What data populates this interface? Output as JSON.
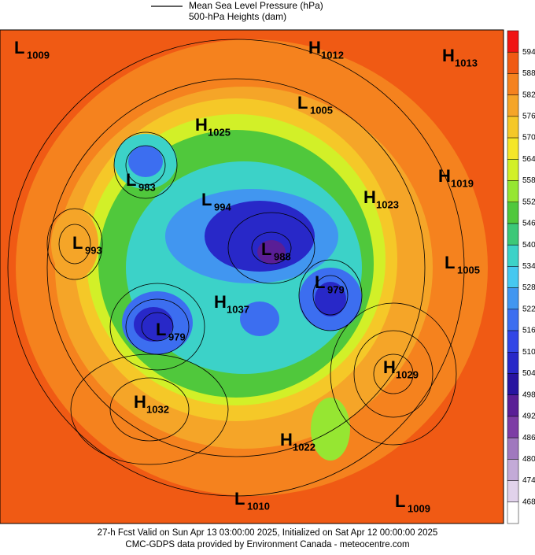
{
  "legend": [
    "Mean Sea Level Pressure (hPa)",
    "500-hPa Heights (dam)"
  ],
  "colorbar": {
    "ticks": [
      594,
      588,
      582,
      576,
      570,
      564,
      558,
      552,
      546,
      540,
      534,
      528,
      522,
      516,
      510,
      504,
      498,
      492,
      486,
      480,
      474,
      468
    ],
    "colors": [
      "#f01414",
      "#f05a14",
      "#f5821e",
      "#f5a528",
      "#f5c828",
      "#f5e628",
      "#d2f028",
      "#96e632",
      "#50c83c",
      "#3cc878",
      "#3cd2c8",
      "#46c8f0",
      "#4196f0",
      "#3c6ef0",
      "#3246e6",
      "#2828c8",
      "#2814a0",
      "#5a1e96",
      "#7d3ca5",
      "#a078be",
      "#c3aad7",
      "#e1d2eb",
      "#ffffff"
    ]
  },
  "centers": [
    {
      "type": "L",
      "value": 1009
    },
    {
      "type": "H",
      "value": 1012
    },
    {
      "type": "H",
      "value": 1013
    },
    {
      "type": "L",
      "value": 1005
    },
    {
      "type": "H",
      "value": 1025
    },
    {
      "type": "L",
      "value": 983
    },
    {
      "type": "H",
      "value": 1019
    },
    {
      "type": "L",
      "value": 994
    },
    {
      "type": "H",
      "value": 1023
    },
    {
      "type": "L",
      "value": 993
    },
    {
      "type": "L",
      "value": 988
    },
    {
      "type": "L",
      "value": 1005
    },
    {
      "type": "L",
      "value": 979
    },
    {
      "type": "H",
      "value": 1037
    },
    {
      "type": "L",
      "value": 979
    },
    {
      "type": "H",
      "value": 1029
    },
    {
      "type": "H",
      "value": 1032
    },
    {
      "type": "H",
      "value": 1022
    },
    {
      "type": "L",
      "value": 1010
    },
    {
      "type": "L",
      "value": 1009
    }
  ],
  "footer": [
    "27-h Fcst Valid on Sun Apr 13 03:00:00 2025, Initialized on Sat Apr 12 00:00:00 2025",
    "CMC-GDPS data provided by Environment Canada - meteocentre.com"
  ]
}
